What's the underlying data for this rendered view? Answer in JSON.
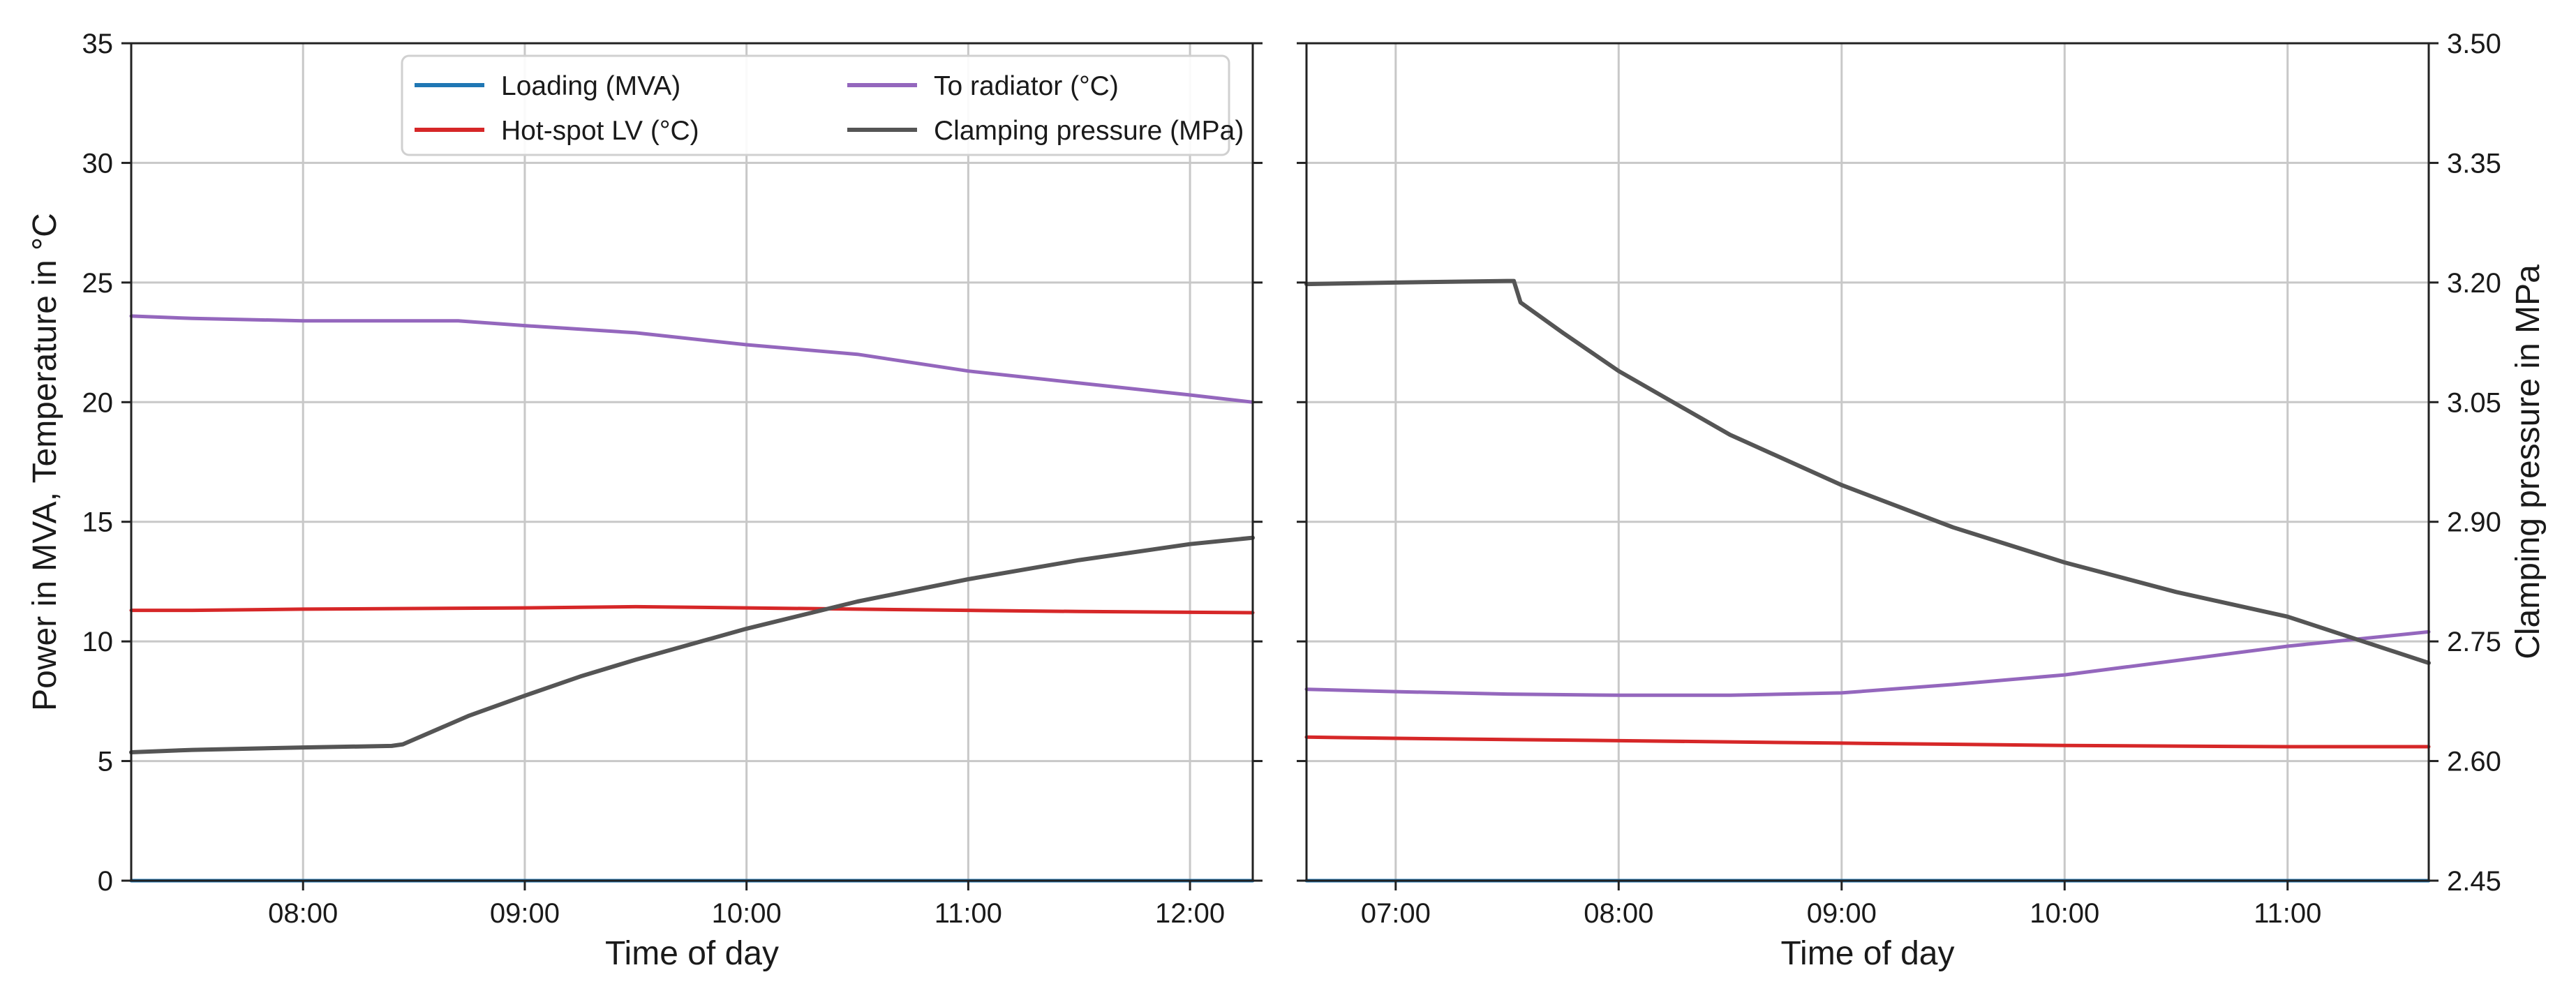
{
  "colors": {
    "loading": "#1f77b4",
    "hotspot": "#d62728",
    "radiator": "#9467bd",
    "clamping": "#555555",
    "grid": "#c8c8c8",
    "axis": "#222222"
  },
  "chart_data": [
    {
      "type": "line",
      "panel": "left",
      "title": "",
      "xlabel": "Time of day",
      "ylabel": "Power in MVA, Temperature in °C",
      "y2label": "",
      "x_unit": "hours of day",
      "xlim": [
        7.225,
        12.283
      ],
      "ylim": [
        0,
        35
      ],
      "y2lim": [
        2.45,
        3.5
      ],
      "x_ticks": [
        8,
        9,
        10,
        11,
        12
      ],
      "x_tick_labels": [
        "08:00",
        "09:00",
        "10:00",
        "11:00",
        "12:00"
      ],
      "y_ticks": [
        0,
        5,
        10,
        15,
        20,
        25,
        30,
        35
      ],
      "y_tick_labels": [
        "0",
        "5",
        "10",
        "15",
        "20",
        "25",
        "30",
        "35"
      ],
      "grid": true,
      "legend": {
        "placement": "upper-center",
        "entries": [
          {
            "key": "loading",
            "label": "Loading (MVA)"
          },
          {
            "key": "radiator",
            "label": "To radiator (°C)"
          },
          {
            "key": "hotspot",
            "label": "Hot-spot LV (°C)"
          },
          {
            "key": "clamping",
            "label": "Clamping pressure (MPa)"
          }
        ]
      },
      "series": [
        {
          "key": "loading",
          "name": "Loading (MVA)",
          "axis": "left",
          "x": [
            7.225,
            12.283
          ],
          "y": [
            0.0,
            0.0
          ]
        },
        {
          "key": "radiator",
          "name": "To radiator (°C)",
          "axis": "left",
          "x": [
            7.225,
            7.5,
            8.0,
            8.5,
            8.7,
            9.0,
            9.5,
            10.0,
            10.5,
            11.0,
            11.5,
            12.0,
            12.283
          ],
          "y": [
            23.6,
            23.5,
            23.4,
            23.4,
            23.4,
            23.2,
            22.9,
            22.4,
            22.0,
            21.3,
            20.8,
            20.3,
            20.0
          ]
        },
        {
          "key": "hotspot",
          "name": "Hot-spot LV (°C)",
          "axis": "left",
          "x": [
            7.225,
            7.5,
            8.0,
            9.0,
            9.5,
            10.0,
            10.5,
            11.0,
            11.5,
            12.283
          ],
          "y": [
            11.3,
            11.3,
            11.35,
            11.4,
            11.45,
            11.4,
            11.35,
            11.3,
            11.25,
            11.2
          ]
        },
        {
          "key": "clamping",
          "name": "Clamping pressure (MPa)",
          "axis": "right",
          "x": [
            7.225,
            7.5,
            8.0,
            8.4,
            8.45,
            8.75,
            9.0,
            9.25,
            9.5,
            10.0,
            10.5,
            11.0,
            11.5,
            12.0,
            12.283
          ],
          "y": [
            2.611,
            2.614,
            2.617,
            2.619,
            2.621,
            2.657,
            2.682,
            2.706,
            2.727,
            2.766,
            2.8,
            2.828,
            2.852,
            2.872,
            2.88
          ]
        }
      ]
    },
    {
      "type": "line",
      "panel": "right",
      "title": "",
      "xlabel": "Time of day",
      "ylabel": "",
      "y2label": "Clamping pressure in MPa",
      "x_unit": "hours of day",
      "xlim": [
        6.6,
        11.633
      ],
      "ylim": [
        0,
        35
      ],
      "y2lim": [
        2.45,
        3.5
      ],
      "x_ticks": [
        7,
        8,
        9,
        10,
        11
      ],
      "x_tick_labels": [
        "07:00",
        "08:00",
        "09:00",
        "10:00",
        "11:00"
      ],
      "y2_ticks": [
        2.45,
        2.6,
        2.75,
        2.9,
        3.05,
        3.2,
        3.35,
        3.5
      ],
      "y2_tick_labels": [
        "2.45",
        "2.60",
        "2.75",
        "2.90",
        "3.05",
        "3.20",
        "3.35",
        "3.50"
      ],
      "grid": true,
      "series": [
        {
          "key": "loading",
          "name": "Loading (MVA)",
          "axis": "left",
          "x": [
            6.6,
            11.633
          ],
          "y": [
            0.0,
            0.0
          ]
        },
        {
          "key": "radiator",
          "name": "To radiator (°C)",
          "axis": "left",
          "x": [
            6.6,
            7.0,
            7.5,
            8.0,
            8.5,
            9.0,
            9.5,
            10.0,
            10.5,
            11.0,
            11.633
          ],
          "y": [
            8.0,
            7.9,
            7.8,
            7.75,
            7.75,
            7.85,
            8.2,
            8.6,
            9.2,
            9.8,
            10.4
          ]
        },
        {
          "key": "hotspot",
          "name": "Hot-spot LV (°C)",
          "axis": "left",
          "x": [
            6.6,
            7.0,
            8.0,
            9.0,
            10.0,
            11.0,
            11.633
          ],
          "y": [
            6.0,
            5.95,
            5.85,
            5.75,
            5.65,
            5.6,
            5.6
          ]
        },
        {
          "key": "clamping",
          "name": "Clamping pressure (MPa)",
          "axis": "right",
          "x": [
            6.6,
            7.0,
            7.5,
            7.53,
            7.56,
            7.75,
            8.0,
            8.5,
            9.0,
            9.5,
            10.0,
            10.5,
            11.0,
            11.633
          ],
          "y": [
            3.198,
            3.2,
            3.202,
            3.202,
            3.175,
            3.137,
            3.089,
            3.009,
            2.946,
            2.893,
            2.849,
            2.812,
            2.781,
            2.723
          ]
        }
      ]
    }
  ]
}
